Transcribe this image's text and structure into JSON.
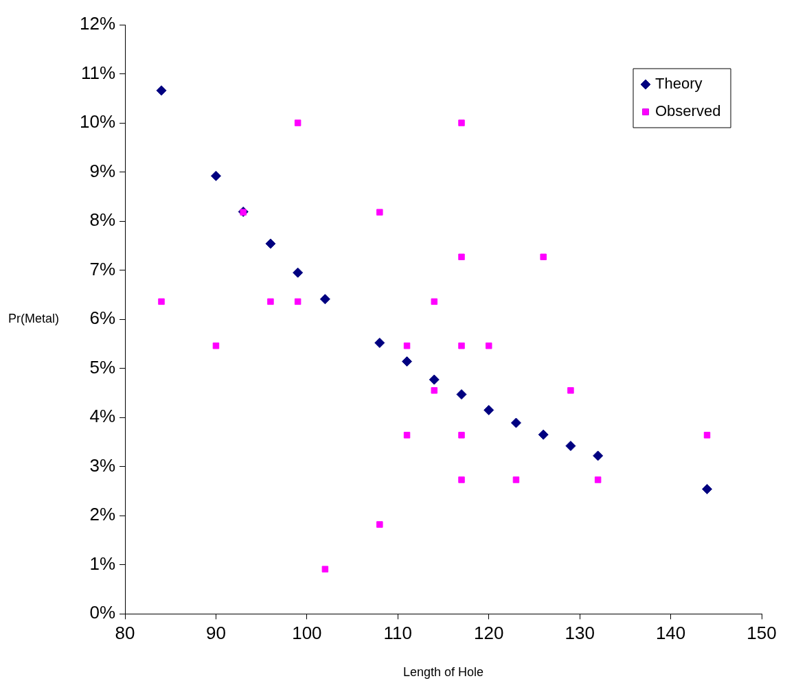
{
  "chart_data": {
    "type": "scatter",
    "xlabel": "Length of Hole",
    "ylabel": "Pr(Metal)",
    "xlim": [
      80,
      150
    ],
    "xticks": [
      80,
      90,
      100,
      110,
      120,
      130,
      140,
      150
    ],
    "ylim": [
      0,
      12
    ],
    "yticks": [
      {
        "value": 0,
        "label": "0%"
      },
      {
        "value": 1,
        "label": "1%"
      },
      {
        "value": 2,
        "label": "2%"
      },
      {
        "value": 3,
        "label": "3%"
      },
      {
        "value": 4,
        "label": "4%"
      },
      {
        "value": 5,
        "label": "5%"
      },
      {
        "value": 6,
        "label": "6%"
      },
      {
        "value": 7,
        "label": "7%"
      },
      {
        "value": 8,
        "label": "8%"
      },
      {
        "value": 9,
        "label": "9%"
      },
      {
        "value": 10,
        "label": "10%"
      },
      {
        "value": 11,
        "label": "11%"
      },
      {
        "value": 12,
        "label": "12%"
      }
    ],
    "legend": "top right",
    "grid": false,
    "series": [
      {
        "name": "Theory",
        "color": "#000080",
        "marker": "diamond",
        "x": [
          84,
          90,
          93,
          96,
          99,
          102,
          108,
          111,
          114,
          117,
          120,
          123,
          126,
          129,
          132,
          144
        ],
        "values": [
          10.66,
          8.92,
          8.19,
          7.54,
          6.95,
          6.41,
          5.52,
          5.14,
          4.77,
          4.47,
          4.15,
          3.89,
          3.65,
          3.42,
          3.22,
          2.54
        ]
      },
      {
        "name": "Observed",
        "color": "#ff00ff",
        "marker": "square",
        "x": [
          84,
          90,
          93,
          96,
          99,
          99,
          102,
          108,
          108,
          111,
          111,
          114,
          114,
          117,
          117,
          117,
          117,
          117,
          120,
          123,
          126,
          129,
          132,
          144
        ],
        "values": [
          6.36,
          5.46,
          8.18,
          6.36,
          10.0,
          6.36,
          0.91,
          8.18,
          1.82,
          5.46,
          3.64,
          6.36,
          4.55,
          10.0,
          7.27,
          5.46,
          3.64,
          2.73,
          5.46,
          2.73,
          7.27,
          4.55,
          2.73,
          3.64
        ]
      }
    ]
  }
}
